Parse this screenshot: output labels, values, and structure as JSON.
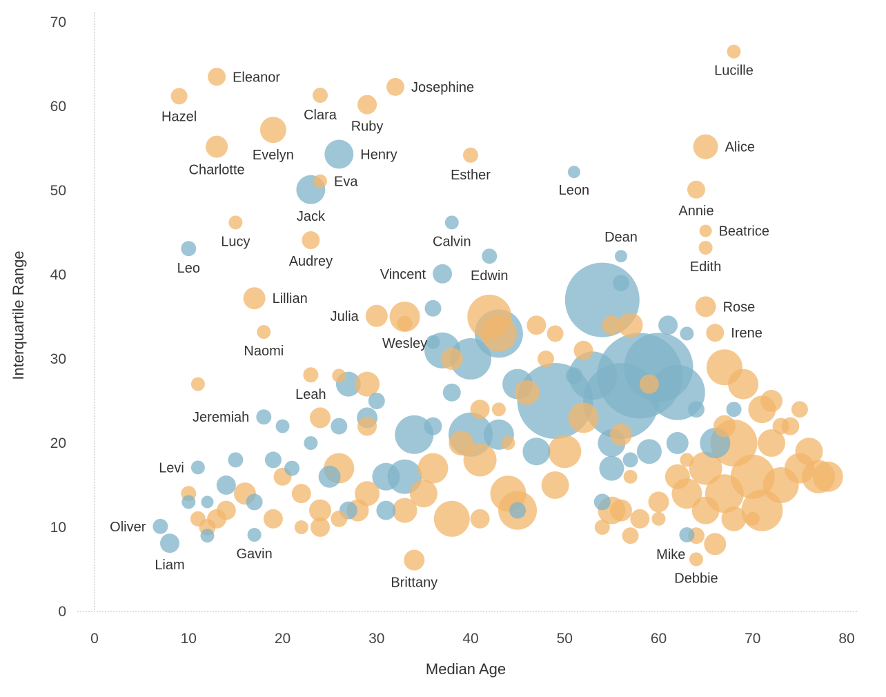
{
  "chart_data": {
    "type": "scatter",
    "title": "",
    "xlabel": "Median Age",
    "ylabel": "Interquartile Range",
    "xlim": [
      0,
      80
    ],
    "ylim": [
      0,
      70
    ],
    "xticks": [
      0,
      10,
      20,
      30,
      40,
      50,
      60,
      70,
      80
    ],
    "yticks": [
      0,
      10,
      20,
      30,
      40,
      50,
      60,
      70
    ],
    "colors": {
      "male": "#7fb3c8",
      "female": "#f2b56b"
    },
    "labeled_points": [
      {
        "name": "Lucille",
        "x": 68,
        "y": 66.5,
        "size": 10,
        "series": "female",
        "label_pos": "below"
      },
      {
        "name": "Eleanor",
        "x": 13,
        "y": 63.5,
        "size": 13,
        "series": "female",
        "label_pos": "right"
      },
      {
        "name": "Hazel",
        "x": 9,
        "y": 61.2,
        "size": 12,
        "series": "female",
        "label_pos": "below"
      },
      {
        "name": "Clara",
        "x": 24,
        "y": 61.3,
        "size": 11,
        "series": "female",
        "label_pos": "below"
      },
      {
        "name": "Josephine",
        "x": 32,
        "y": 62.3,
        "size": 13,
        "series": "female",
        "label_pos": "right"
      },
      {
        "name": "Ruby",
        "x": 29,
        "y": 60.2,
        "size": 14,
        "series": "female",
        "label_pos": "below"
      },
      {
        "name": "Evelyn",
        "x": 19,
        "y": 57.2,
        "size": 19,
        "series": "female",
        "label_pos": "below"
      },
      {
        "name": "Charlotte",
        "x": 13,
        "y": 55.2,
        "size": 16,
        "series": "female",
        "label_pos": "below"
      },
      {
        "name": "Henry",
        "x": 26,
        "y": 54.3,
        "size": 21,
        "series": "male",
        "label_pos": "right"
      },
      {
        "name": "Alice",
        "x": 65,
        "y": 55.2,
        "size": 18,
        "series": "female",
        "label_pos": "right"
      },
      {
        "name": "Esther",
        "x": 40,
        "y": 54.2,
        "size": 11,
        "series": "female",
        "label_pos": "below"
      },
      {
        "name": "Eva",
        "x": 24,
        "y": 51.1,
        "size": 10,
        "series": "female",
        "label_pos": "right"
      },
      {
        "name": "Leon",
        "x": 51,
        "y": 52.2,
        "size": 9,
        "series": "male",
        "label_pos": "below"
      },
      {
        "name": "Jack",
        "x": 23,
        "y": 50.1,
        "size": 21,
        "series": "male",
        "label_pos": "below"
      },
      {
        "name": "Annie",
        "x": 64,
        "y": 50.1,
        "size": 13,
        "series": "female",
        "label_pos": "below"
      },
      {
        "name": "Lucy",
        "x": 15,
        "y": 46.2,
        "size": 10,
        "series": "female",
        "label_pos": "below"
      },
      {
        "name": "Calvin",
        "x": 38,
        "y": 46.2,
        "size": 10,
        "series": "male",
        "label_pos": "below"
      },
      {
        "name": "Beatrice",
        "x": 65,
        "y": 45.2,
        "size": 9,
        "series": "female",
        "label_pos": "right"
      },
      {
        "name": "Audrey",
        "x": 23,
        "y": 44.1,
        "size": 13,
        "series": "female",
        "label_pos": "below"
      },
      {
        "name": "Leo",
        "x": 10,
        "y": 43.1,
        "size": 11,
        "series": "male",
        "label_pos": "below"
      },
      {
        "name": "Edith",
        "x": 65,
        "y": 43.2,
        "size": 10,
        "series": "female",
        "label_pos": "below"
      },
      {
        "name": "Dean",
        "x": 56,
        "y": 42.2,
        "size": 9,
        "series": "male",
        "label_pos": "above"
      },
      {
        "name": "Edwin",
        "x": 42,
        "y": 42.2,
        "size": 11,
        "series": "male",
        "label_pos": "below"
      },
      {
        "name": "Vincent",
        "x": 37,
        "y": 40.1,
        "size": 14,
        "series": "male",
        "label_pos": "left"
      },
      {
        "name": "Lillian",
        "x": 17,
        "y": 37.2,
        "size": 16,
        "series": "female",
        "label_pos": "right"
      },
      {
        "name": "Rose",
        "x": 65,
        "y": 36.2,
        "size": 15,
        "series": "female",
        "label_pos": "right"
      },
      {
        "name": "Julia",
        "x": 30,
        "y": 35.1,
        "size": 16,
        "series": "female",
        "label_pos": "left"
      },
      {
        "name": "Irene",
        "x": 66,
        "y": 33.1,
        "size": 13,
        "series": "female",
        "label_pos": "right"
      },
      {
        "name": "Naomi",
        "x": 18,
        "y": 33.2,
        "size": 10,
        "series": "female",
        "label_pos": "below"
      },
      {
        "name": "Wesley",
        "x": 33,
        "y": 34.2,
        "size": 11,
        "series": "female",
        "label_pos": "below"
      },
      {
        "name": "Leah",
        "x": 23,
        "y": 28.1,
        "size": 11,
        "series": "female",
        "label_pos": "below"
      },
      {
        "name": "Jeremiah",
        "x": 18,
        "y": 23.1,
        "size": 11,
        "series": "male",
        "label_pos": "left"
      },
      {
        "name": "Levi",
        "x": 11,
        "y": 17.1,
        "size": 10,
        "series": "male",
        "label_pos": "left"
      },
      {
        "name": "Oliver",
        "x": 7,
        "y": 10.1,
        "size": 11,
        "series": "male",
        "label_pos": "left"
      },
      {
        "name": "Liam",
        "x": 8,
        "y": 8.1,
        "size": 14,
        "series": "male",
        "label_pos": "below"
      },
      {
        "name": "Gavin",
        "x": 17,
        "y": 9.1,
        "size": 10,
        "series": "male",
        "label_pos": "below"
      },
      {
        "name": "Mike",
        "x": 63,
        "y": 9.1,
        "size": 11,
        "series": "male",
        "label_pos": "below-left"
      },
      {
        "name": "Debbie",
        "x": 64,
        "y": 6.2,
        "size": 10,
        "series": "female",
        "label_pos": "below"
      },
      {
        "name": "Brittany",
        "x": 34,
        "y": 6.1,
        "size": 15,
        "series": "female",
        "label_pos": "below"
      }
    ],
    "unlabeled_points": [
      {
        "x": 54,
        "y": 37,
        "size": 54,
        "series": "male"
      },
      {
        "x": 58,
        "y": 28,
        "size": 62,
        "series": "male"
      },
      {
        "x": 56,
        "y": 25,
        "size": 55,
        "series": "male"
      },
      {
        "x": 60,
        "y": 29,
        "size": 50,
        "series": "male"
      },
      {
        "x": 49,
        "y": 25,
        "size": 55,
        "series": "male"
      },
      {
        "x": 62,
        "y": 26,
        "size": 40,
        "series": "male"
      },
      {
        "x": 53,
        "y": 28,
        "size": 35,
        "series": "male"
      },
      {
        "x": 43,
        "y": 33,
        "size": 35,
        "series": "male"
      },
      {
        "x": 40,
        "y": 30,
        "size": 30,
        "series": "male"
      },
      {
        "x": 37,
        "y": 31,
        "size": 26,
        "series": "male"
      },
      {
        "x": 40,
        "y": 21,
        "size": 32,
        "series": "male"
      },
      {
        "x": 34,
        "y": 21,
        "size": 28,
        "series": "male"
      },
      {
        "x": 43,
        "y": 21,
        "size": 22,
        "series": "male"
      },
      {
        "x": 47,
        "y": 19,
        "size": 20,
        "series": "male"
      },
      {
        "x": 45,
        "y": 27,
        "size": 22,
        "series": "male"
      },
      {
        "x": 27,
        "y": 27,
        "size": 18,
        "series": "male"
      },
      {
        "x": 31,
        "y": 16,
        "size": 20,
        "series": "male"
      },
      {
        "x": 33,
        "y": 16,
        "size": 25,
        "series": "male"
      },
      {
        "x": 29,
        "y": 23,
        "size": 15,
        "series": "male"
      },
      {
        "x": 25,
        "y": 16,
        "size": 16,
        "series": "male"
      },
      {
        "x": 14,
        "y": 15,
        "size": 14,
        "series": "male"
      },
      {
        "x": 17,
        "y": 13,
        "size": 12,
        "series": "male"
      },
      {
        "x": 19,
        "y": 18,
        "size": 12,
        "series": "male"
      },
      {
        "x": 21,
        "y": 17,
        "size": 11,
        "series": "male"
      },
      {
        "x": 59,
        "y": 19,
        "size": 18,
        "series": "male"
      },
      {
        "x": 55,
        "y": 20,
        "size": 20,
        "series": "male"
      },
      {
        "x": 55,
        "y": 17,
        "size": 18,
        "series": "male"
      },
      {
        "x": 61,
        "y": 34,
        "size": 14,
        "series": "male"
      },
      {
        "x": 62,
        "y": 20,
        "size": 16,
        "series": "male"
      },
      {
        "x": 66,
        "y": 20,
        "size": 22,
        "series": "male"
      },
      {
        "x": 63,
        "y": 33,
        "size": 10,
        "series": "male"
      },
      {
        "x": 64,
        "y": 24,
        "size": 12,
        "series": "male"
      },
      {
        "x": 68,
        "y": 24,
        "size": 11,
        "series": "male"
      },
      {
        "x": 36,
        "y": 36,
        "size": 12,
        "series": "male"
      },
      {
        "x": 38,
        "y": 26,
        "size": 13,
        "series": "male"
      },
      {
        "x": 36,
        "y": 32,
        "size": 10,
        "series": "male"
      },
      {
        "x": 56,
        "y": 39,
        "size": 12,
        "series": "male"
      },
      {
        "x": 51,
        "y": 28,
        "size": 12,
        "series": "male"
      },
      {
        "x": 23,
        "y": 20,
        "size": 10,
        "series": "male"
      },
      {
        "x": 20,
        "y": 22,
        "size": 10,
        "series": "male"
      },
      {
        "x": 15,
        "y": 18,
        "size": 11,
        "series": "male"
      },
      {
        "x": 12,
        "y": 13,
        "size": 9,
        "series": "male"
      },
      {
        "x": 12,
        "y": 9,
        "size": 10,
        "series": "male"
      },
      {
        "x": 10,
        "y": 13,
        "size": 10,
        "series": "male"
      },
      {
        "x": 31,
        "y": 12,
        "size": 14,
        "series": "male"
      },
      {
        "x": 27,
        "y": 12,
        "size": 13,
        "series": "male"
      },
      {
        "x": 45,
        "y": 12,
        "size": 12,
        "series": "male"
      },
      {
        "x": 54,
        "y": 13,
        "size": 12,
        "series": "male"
      },
      {
        "x": 57,
        "y": 18,
        "size": 11,
        "series": "male"
      },
      {
        "x": 36,
        "y": 22,
        "size": 13,
        "series": "male"
      },
      {
        "x": 26,
        "y": 22,
        "size": 12,
        "series": "male"
      },
      {
        "x": 30,
        "y": 25,
        "size": 12,
        "series": "male"
      },
      {
        "x": 42,
        "y": 35,
        "size": 32,
        "series": "female"
      },
      {
        "x": 43,
        "y": 33,
        "size": 26,
        "series": "female"
      },
      {
        "x": 33,
        "y": 35,
        "size": 22,
        "series": "female"
      },
      {
        "x": 57,
        "y": 34,
        "size": 18,
        "series": "female"
      },
      {
        "x": 67,
        "y": 29,
        "size": 26,
        "series": "female"
      },
      {
        "x": 69,
        "y": 27,
        "size": 22,
        "series": "female"
      },
      {
        "x": 71,
        "y": 24,
        "size": 20,
        "series": "female"
      },
      {
        "x": 72,
        "y": 25,
        "size": 16,
        "series": "female"
      },
      {
        "x": 68,
        "y": 20,
        "size": 34,
        "series": "female"
      },
      {
        "x": 70,
        "y": 16,
        "size": 32,
        "series": "female"
      },
      {
        "x": 71,
        "y": 12,
        "size": 30,
        "series": "female"
      },
      {
        "x": 67,
        "y": 14,
        "size": 28,
        "series": "female"
      },
      {
        "x": 73,
        "y": 15,
        "size": 26,
        "series": "female"
      },
      {
        "x": 75,
        "y": 17,
        "size": 22,
        "series": "female"
      },
      {
        "x": 77,
        "y": 16,
        "size": 24,
        "series": "female"
      },
      {
        "x": 76,
        "y": 19,
        "size": 20,
        "series": "female"
      },
      {
        "x": 74,
        "y": 22,
        "size": 13,
        "series": "female"
      },
      {
        "x": 75,
        "y": 24,
        "size": 12,
        "series": "female"
      },
      {
        "x": 65,
        "y": 17,
        "size": 24,
        "series": "female"
      },
      {
        "x": 63,
        "y": 14,
        "size": 22,
        "series": "female"
      },
      {
        "x": 62,
        "y": 16,
        "size": 18,
        "series": "female"
      },
      {
        "x": 60,
        "y": 13,
        "size": 15,
        "series": "female"
      },
      {
        "x": 57,
        "y": 9,
        "size": 12,
        "series": "female"
      },
      {
        "x": 56,
        "y": 12,
        "size": 16,
        "series": "female"
      },
      {
        "x": 58,
        "y": 11,
        "size": 14,
        "series": "female"
      },
      {
        "x": 54,
        "y": 10,
        "size": 11,
        "series": "female"
      },
      {
        "x": 55,
        "y": 12,
        "size": 20,
        "series": "female"
      },
      {
        "x": 45,
        "y": 12,
        "size": 28,
        "series": "female"
      },
      {
        "x": 44,
        "y": 14,
        "size": 26,
        "series": "female"
      },
      {
        "x": 49,
        "y": 15,
        "size": 20,
        "series": "female"
      },
      {
        "x": 50,
        "y": 19,
        "size": 24,
        "series": "female"
      },
      {
        "x": 52,
        "y": 23,
        "size": 22,
        "series": "female"
      },
      {
        "x": 46,
        "y": 26,
        "size": 18,
        "series": "female"
      },
      {
        "x": 47,
        "y": 34,
        "size": 14,
        "series": "female"
      },
      {
        "x": 49,
        "y": 33,
        "size": 12,
        "series": "female"
      },
      {
        "x": 48,
        "y": 30,
        "size": 12,
        "series": "female"
      },
      {
        "x": 52,
        "y": 31,
        "size": 14,
        "series": "female"
      },
      {
        "x": 38,
        "y": 11,
        "size": 26,
        "series": "female"
      },
      {
        "x": 41,
        "y": 18,
        "size": 24,
        "series": "female"
      },
      {
        "x": 39,
        "y": 20,
        "size": 18,
        "series": "female"
      },
      {
        "x": 36,
        "y": 17,
        "size": 22,
        "series": "female"
      },
      {
        "x": 35,
        "y": 14,
        "size": 20,
        "series": "female"
      },
      {
        "x": 33,
        "y": 12,
        "size": 18,
        "series": "female"
      },
      {
        "x": 29,
        "y": 14,
        "size": 18,
        "series": "female"
      },
      {
        "x": 26,
        "y": 17,
        "size": 22,
        "series": "female"
      },
      {
        "x": 28,
        "y": 12,
        "size": 16,
        "series": "female"
      },
      {
        "x": 24,
        "y": 12,
        "size": 16,
        "series": "female"
      },
      {
        "x": 24,
        "y": 10,
        "size": 14,
        "series": "female"
      },
      {
        "x": 26,
        "y": 11,
        "size": 12,
        "series": "female"
      },
      {
        "x": 22,
        "y": 14,
        "size": 14,
        "series": "female"
      },
      {
        "x": 20,
        "y": 16,
        "size": 13,
        "series": "female"
      },
      {
        "x": 19,
        "y": 11,
        "size": 14,
        "series": "female"
      },
      {
        "x": 16,
        "y": 14,
        "size": 16,
        "series": "female"
      },
      {
        "x": 14,
        "y": 12,
        "size": 14,
        "series": "female"
      },
      {
        "x": 13,
        "y": 11,
        "size": 14,
        "series": "female"
      },
      {
        "x": 12,
        "y": 10,
        "size": 12,
        "series": "female"
      },
      {
        "x": 11,
        "y": 11,
        "size": 11,
        "series": "female"
      },
      {
        "x": 10,
        "y": 14,
        "size": 11,
        "series": "female"
      },
      {
        "x": 22,
        "y": 10,
        "size": 10,
        "series": "female"
      },
      {
        "x": 11,
        "y": 27,
        "size": 10,
        "series": "female"
      },
      {
        "x": 24,
        "y": 23,
        "size": 15,
        "series": "female"
      },
      {
        "x": 26,
        "y": 28,
        "size": 10,
        "series": "female"
      },
      {
        "x": 29,
        "y": 27,
        "size": 18,
        "series": "female"
      },
      {
        "x": 29,
        "y": 22,
        "size": 14,
        "series": "female"
      },
      {
        "x": 38,
        "y": 30,
        "size": 16,
        "series": "female"
      },
      {
        "x": 41,
        "y": 24,
        "size": 14,
        "series": "female"
      },
      {
        "x": 43,
        "y": 24,
        "size": 10,
        "series": "female"
      },
      {
        "x": 41,
        "y": 11,
        "size": 14,
        "series": "female"
      },
      {
        "x": 44,
        "y": 20,
        "size": 10,
        "series": "female"
      },
      {
        "x": 63,
        "y": 18,
        "size": 10,
        "series": "female"
      },
      {
        "x": 64,
        "y": 9,
        "size": 12,
        "series": "female"
      },
      {
        "x": 66,
        "y": 8,
        "size": 16,
        "series": "female"
      },
      {
        "x": 65,
        "y": 12,
        "size": 20,
        "series": "female"
      },
      {
        "x": 68,
        "y": 11,
        "size": 18,
        "series": "female"
      },
      {
        "x": 70,
        "y": 11,
        "size": 10,
        "series": "female"
      },
      {
        "x": 60,
        "y": 11,
        "size": 10,
        "series": "female"
      },
      {
        "x": 59,
        "y": 27,
        "size": 14,
        "series": "female"
      },
      {
        "x": 55,
        "y": 34,
        "size": 14,
        "series": "female"
      },
      {
        "x": 56,
        "y": 21,
        "size": 16,
        "series": "female"
      },
      {
        "x": 57,
        "y": 16,
        "size": 10,
        "series": "female"
      },
      {
        "x": 78,
        "y": 16,
        "size": 22,
        "series": "female"
      },
      {
        "x": 72,
        "y": 20,
        "size": 20,
        "series": "female"
      },
      {
        "x": 73,
        "y": 22,
        "size": 12,
        "series": "female"
      },
      {
        "x": 67,
        "y": 22,
        "size": 16,
        "series": "female"
      }
    ]
  }
}
